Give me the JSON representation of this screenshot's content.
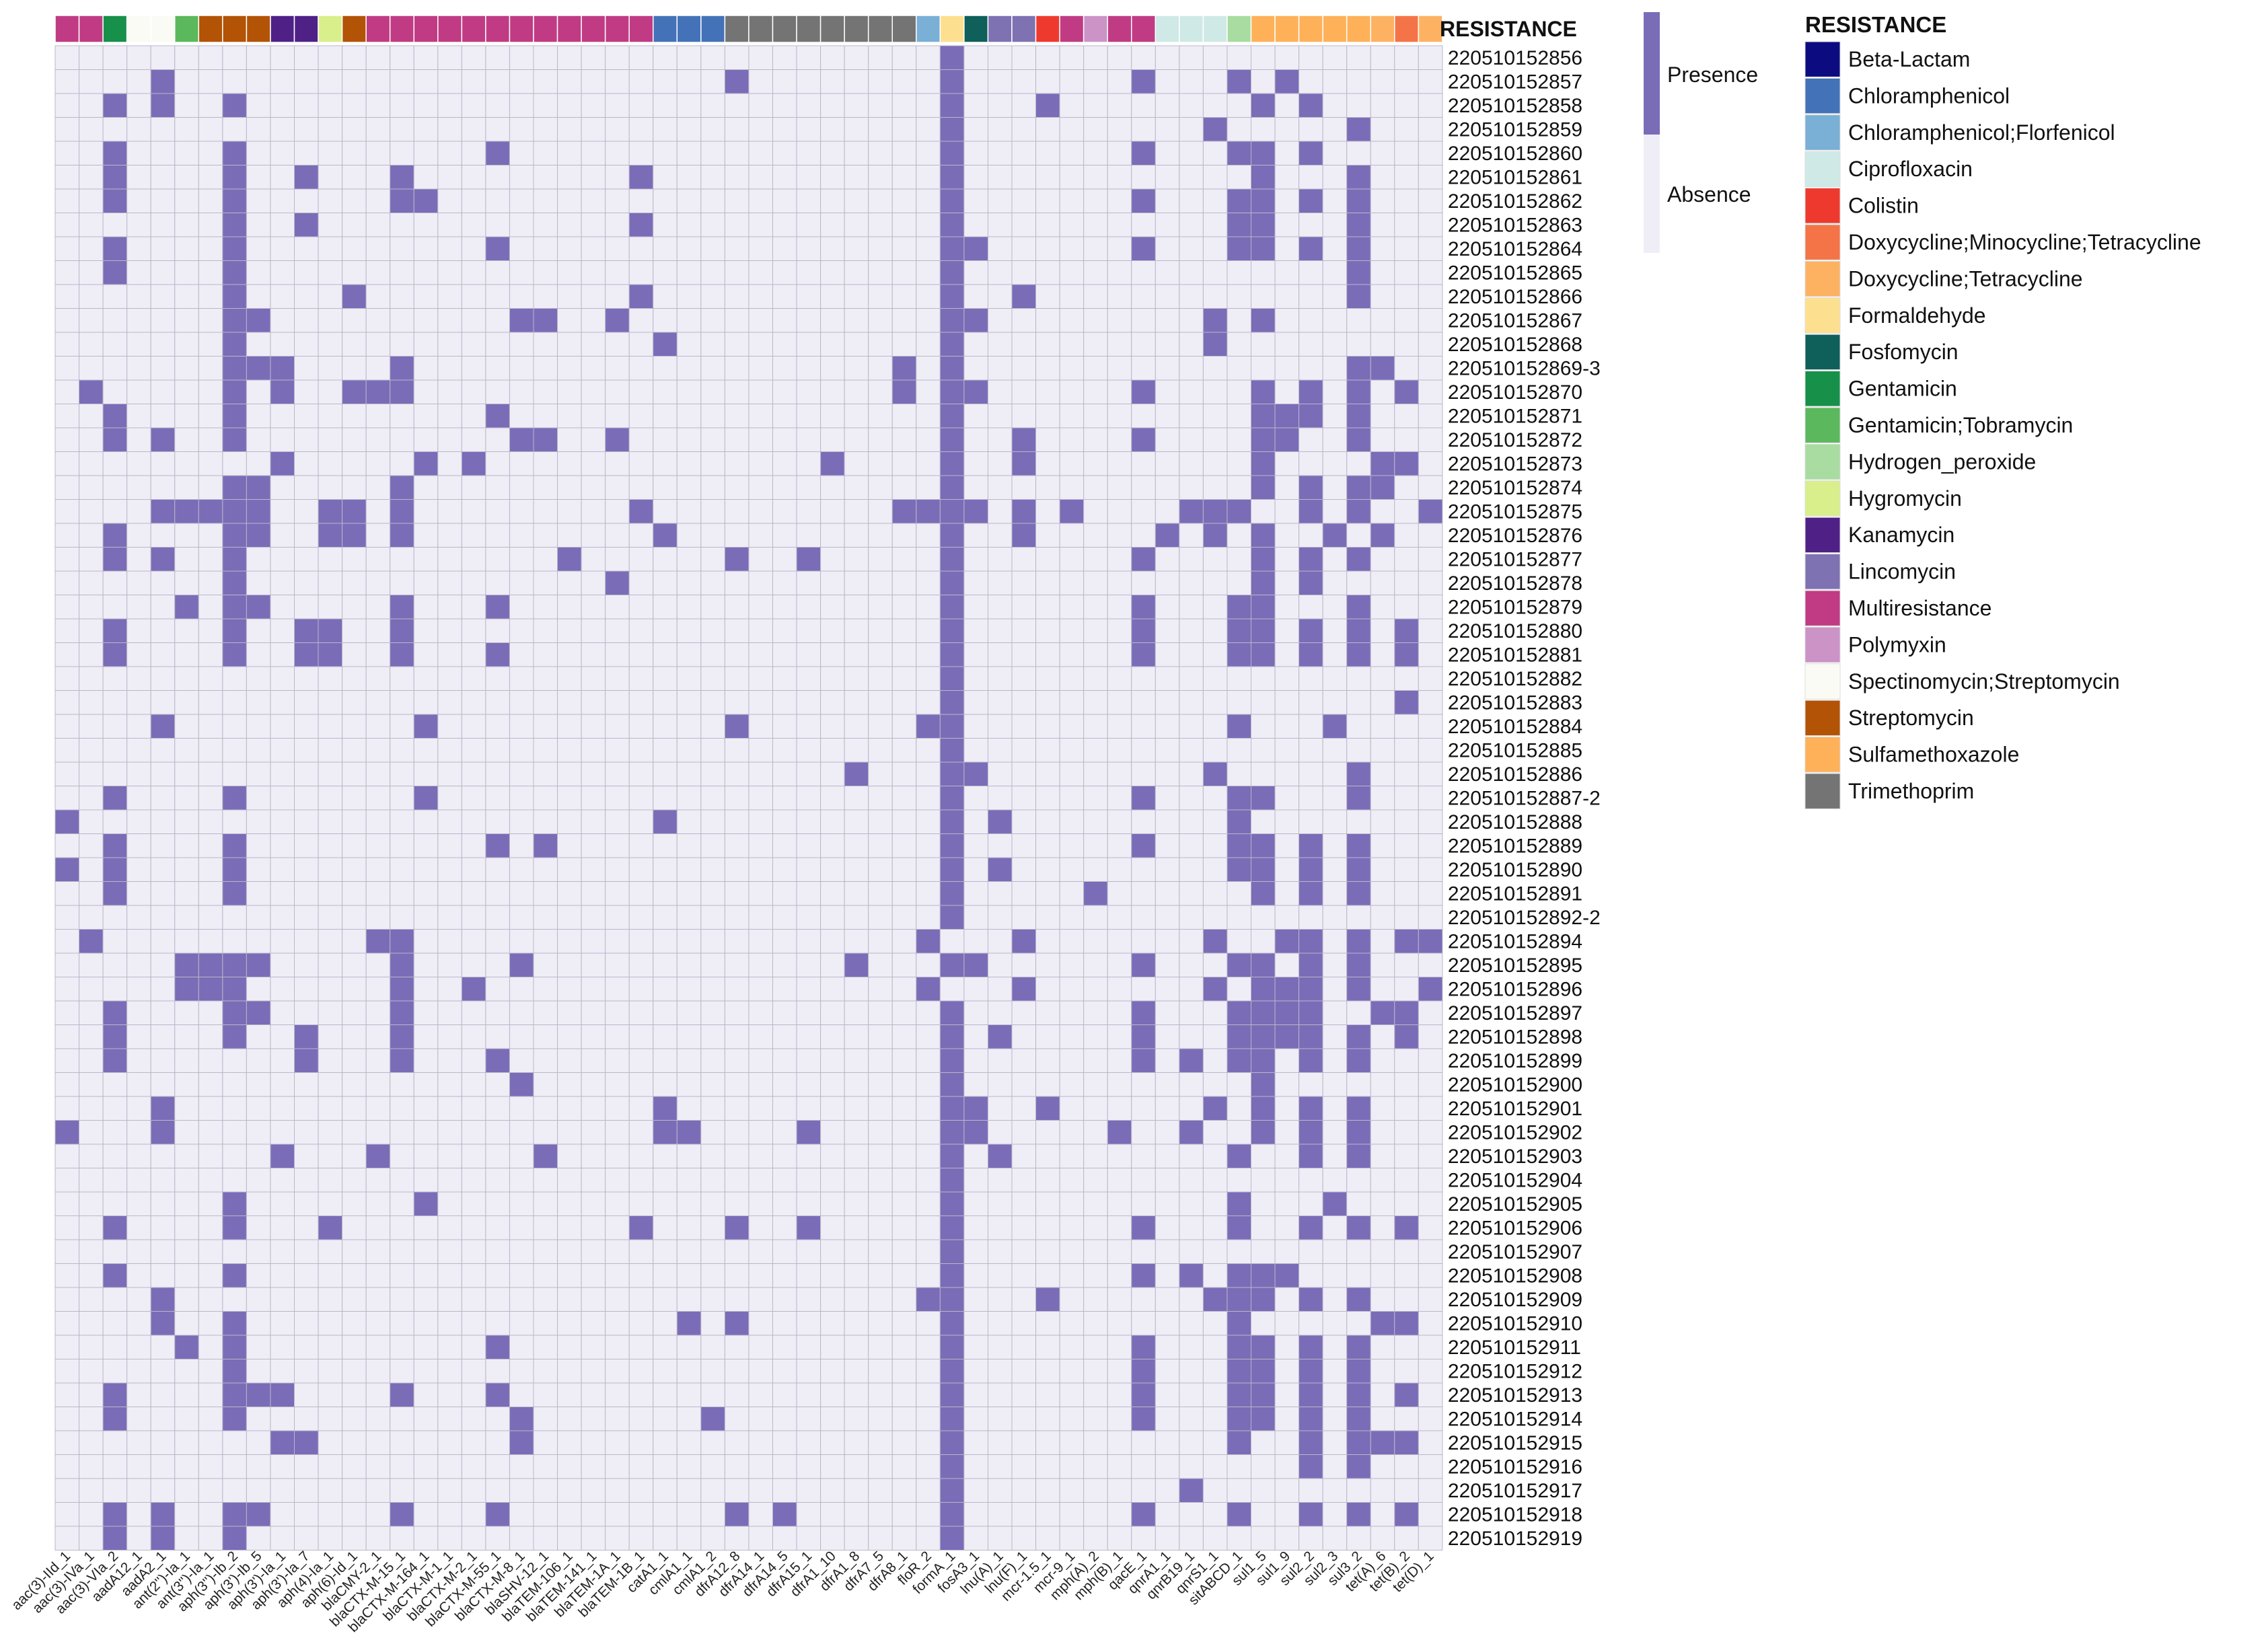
{
  "chart_data": {
    "type": "heatmap",
    "annotation_title": "RESISTANCE",
    "value_legend": {
      "presence": "Presence",
      "absence": "Absence"
    },
    "colors": {
      "presence": "#7b6cb8",
      "absence": "#efeef7",
      "grid": "#b9b7c8"
    },
    "columns": [
      "aac(3)-IId_1",
      "aac(3)-IVa_1",
      "aac(3)-VIa_2",
      "aadA12_1",
      "aadA2_1",
      "ant(2'')-Ia_1",
      "ant(3'')-Ia_1",
      "aph(3'')-Ib_2",
      "aph(3')-Ib_5",
      "aph(3')-Ia_1",
      "aph(3')-Ia_7",
      "aph(4)-Ia_1",
      "aph(6)-Id_1",
      "blaCMY-2_1",
      "blaCTX-M-15_1",
      "blaCTX-M-164_1",
      "blaCTX-M-1_1",
      "blaCTX-M-2_1",
      "blaCTX-M-55_1",
      "blaCTX-M-8_1",
      "blaSHV-12_1",
      "blaTEM-106_1",
      "blaTEM-141_1",
      "blaTEM-1A_1",
      "blaTEM-1B_1",
      "catA1_1",
      "cmlA1_1",
      "cmlA1_2",
      "dfrA12_8",
      "dfrA14_1",
      "dfrA14_5",
      "dfrA15_1",
      "dfrA1_10",
      "dfrA1_8",
      "dfrA7_5",
      "dfrA8_1",
      "floR_2",
      "formA_1",
      "fosA3_1",
      "lnu(A)_1",
      "lnu(F)_1",
      "mcr-1.5_1",
      "mcr-9_1",
      "mph(A)_2",
      "mph(B)_1",
      "qacE_1",
      "qnrA1_1",
      "qnrB19_1",
      "qnrS1_1",
      "sitABCD_1",
      "sul1_5",
      "sul1_9",
      "sul2_2",
      "sul2_3",
      "sul3_2",
      "tet(A)_6",
      "tet(B)_2",
      "tet(D)_1"
    ],
    "column_classes": [
      "Multiresistance",
      "Multiresistance",
      "Gentamicin",
      "Spectinomycin;Streptomycin",
      "Spectinomycin;Streptomycin",
      "Gentamicin;Tobramycin",
      "Streptomycin",
      "Streptomycin",
      "Streptomycin",
      "Kanamycin",
      "Kanamycin",
      "Hygromycin",
      "Streptomycin",
      "Multiresistance",
      "Multiresistance",
      "Multiresistance",
      "Multiresistance",
      "Multiresistance",
      "Multiresistance",
      "Multiresistance",
      "Multiresistance",
      "Multiresistance",
      "Multiresistance",
      "Multiresistance",
      "Multiresistance",
      "Chloramphenicol",
      "Chloramphenicol",
      "Chloramphenicol",
      "Trimethoprim",
      "Trimethoprim",
      "Trimethoprim",
      "Trimethoprim",
      "Trimethoprim",
      "Trimethoprim",
      "Trimethoprim",
      "Trimethoprim",
      "Chloramphenicol;Florfenicol",
      "Formaldehyde",
      "Fosfomycin",
      "Lincomycin",
      "Lincomycin",
      "Colistin",
      "Multiresistance",
      "Polymyxin",
      "Multiresistance",
      "Multiresistance",
      "Ciprofloxacin",
      "Ciprofloxacin",
      "Ciprofloxacin",
      "Hydrogen_peroxide",
      "Sulfamethoxazole",
      "Sulfamethoxazole",
      "Sulfamethoxazole",
      "Sulfamethoxazole",
      "Sulfamethoxazole",
      "Doxycycline;Tetracycline",
      "Doxycycline;Minocycline;Tetracycline",
      "Doxycycline;Tetracycline"
    ],
    "rows": [
      "220510152856",
      "220510152857",
      "220510152858",
      "220510152859",
      "220510152860",
      "220510152861",
      "220510152862",
      "220510152863",
      "220510152864",
      "220510152865",
      "220510152866",
      "220510152867",
      "220510152868",
      "220510152869-3",
      "220510152870",
      "220510152871",
      "220510152872",
      "220510152873",
      "220510152874",
      "220510152875",
      "220510152876",
      "220510152877",
      "220510152878",
      "220510152879",
      "220510152880",
      "220510152881",
      "220510152882",
      "220510152883",
      "220510152884",
      "220510152885",
      "220510152886",
      "220510152887-2",
      "220510152888",
      "220510152889",
      "220510152890",
      "220510152891",
      "220510152892-2",
      "220510152894",
      "220510152895",
      "220510152896",
      "220510152897",
      "220510152898",
      "220510152899",
      "220510152900",
      "220510152901",
      "220510152902",
      "220510152903",
      "220510152904",
      "220510152905",
      "220510152906",
      "220510152907",
      "220510152908",
      "220510152909",
      "220510152910",
      "220510152911",
      "220510152912",
      "220510152913",
      "220510152914",
      "220510152915",
      "220510152916",
      "220510152917",
      "220510152918",
      "220510152919"
    ],
    "matrix": [
      "0000000000000000000000000000000000000100000000000000000000",
      "0000100000000000000000000000100000000100000001000101000000",
      "0010100100000000000000000000000000000100010000000010100000",
      "0000000000000000000000000000000000000100000000001000001000",
      "0010000100000000001000000000000000000100000001000110100000",
      "0010000100100010000000001000000000000100000000000010001000",
      "0010000100000011000000000000000000000100000001000110101000",
      "0000000100100000000000001000000000000100000000000110001000",
      "0010000100000000001000000000000000000110000001000110101000",
      "0010000100000000000000000000000000000100000000000000001000",
      "0000000100001000000000001000000000000100100000000000001000",
      "0000000110000000000110010000000000000110000000001010000000",
      "0000000100000000000000000100000000000100000000001000000000",
      "0000000111000010000000000000000000010100000000000000001100",
      "0100000101001110000000000000000000010110000001000010101010",
      "0010000100000000001000000000000000000100000000000011101000",
      "0010100100000000000110010000000000000100100001000011001000",
      "0000000001000001010000000000000010000100100000000010000110",
      "0000000110000010000000000000000000000100000000000010101100",
      "0000111110011010000000001000000000011110101000011100101001",
      "0010000110011010000000000100000000000100100000101010010100",
      "0010100100000000000001000000100100000100000001000010101000",
      "0000000100000000000000010000000000000100000000000010100000",
      "0000010110000010001000000000000000000100000001000110001000",
      "0010000100110010000000000000000000000100000001000110101010",
      "0010000100110010001000000000000000000100000001000110101010",
      "0000000000000000000000000000000000000100000000000000000000",
      "0000000000000000000000000000000000000100000000000000000010",
      "0000100000000001000000000000100000001100000000000100010000",
      "0000000000000000000000000000000000000100000000000000000000",
      "0000000000000000000000000000000001000110000000001000001000",
      "0010000100000001000000000000000000000100000001000110001000",
      "1000000000000000000000000100000000000101000000000100000000",
      "0010000100000000001010000000000000000100000001000110101000",
      "1010000100000000000000000000000000000101000000000110101000",
      "0010000100000000000000000000000000000100000100000010101000",
      "0000000000000000000000000000000000000100000000000000000000",
      "0100000000000110000000000000000000001000100000001001101011",
      "0000011110000010000100000000000001000110000001000110101000",
      "0000011100000010010000000000000000001000100000001011101001",
      "0010000110000010000000000000000000000100000001000111100110",
      "0010000100100010000000000000000000000101000001000111101010",
      "0010000000100010001000000000000000000100000001010110101000",
      "0000000000000000000100000000000000000100000000000010000000",
      "0000100000000000000000000100000000000110010000001010101000",
      "1000100000000000000000000110000100000110000010010010101000",
      "0000000001000100000010000000000000000101000000000100101000",
      "0000000000000000000000000000000000000100000000000000000000",
      "0000000100000001000000000000000000000100000000000100010000",
      "0010000100010000000000001000100100000100000001000100101010",
      "0000000000000000000000000000000000000100000000000000000000",
      "0010000100000000000000000000000000000100000001010111000000",
      "0000100000000000000000000000000000001100010000001110101000",
      "0000100100000000000000000010100000000100000000000100000110",
      "0000010100000000001000000000000000000100000001000110101000",
      "0000000100000000000000000000000000000100000001000110101000",
      "0010000111000010001000000000000000000100000001000110101010",
      "0010000100000000000100000001000000000100000001000110101000",
      "0000000001100000000100000000000000000100000000000100101110",
      "0000000000000000000000000000000000000100000000000000101000",
      "0000000000000000000000000000000000000100000000010000000000",
      "0010100110000010001000000000101000000100000001000100101010",
      "0010100100000000000000000000000000000100000000000000000000"
    ],
    "legend": [
      {
        "name": "Beta-Lactam",
        "color": "#0c0c80"
      },
      {
        "name": "Chloramphenicol",
        "color": "#4472b8"
      },
      {
        "name": "Chloramphenicol;Florfenicol",
        "color": "#7aafd6"
      },
      {
        "name": "Ciprofloxacin",
        "color": "#cfe9e6"
      },
      {
        "name": "Colistin",
        "color": "#ee3a2e"
      },
      {
        "name": "Doxycycline;Minocycline;Tetracycline",
        "color": "#f47447"
      },
      {
        "name": "Doxycycline;Tetracycline",
        "color": "#fdb262"
      },
      {
        "name": "Formaldehyde",
        "color": "#fde08f"
      },
      {
        "name": "Fosfomycin",
        "color": "#0f5f5a"
      },
      {
        "name": "Gentamicin",
        "color": "#17904a"
      },
      {
        "name": "Gentamicin;Tobramycin",
        "color": "#5cb85c"
      },
      {
        "name": "Hydrogen_peroxide",
        "color": "#a8dca1"
      },
      {
        "name": "Hygromycin",
        "color": "#d9ef8b"
      },
      {
        "name": "Kanamycin",
        "color": "#4f2187"
      },
      {
        "name": "Lincomycin",
        "color": "#7e72b2"
      },
      {
        "name": "Multiresistance",
        "color": "#c03b84"
      },
      {
        "name": "Polymyxin",
        "color": "#cc93c7"
      },
      {
        "name": "Spectinomycin;Streptomycin",
        "color": "#fbfbf6"
      },
      {
        "name": "Streptomycin",
        "color": "#b35306"
      },
      {
        "name": "Sulfamethoxazole",
        "color": "#feb159"
      },
      {
        "name": "Trimethoprim",
        "color": "#747474"
      }
    ]
  }
}
